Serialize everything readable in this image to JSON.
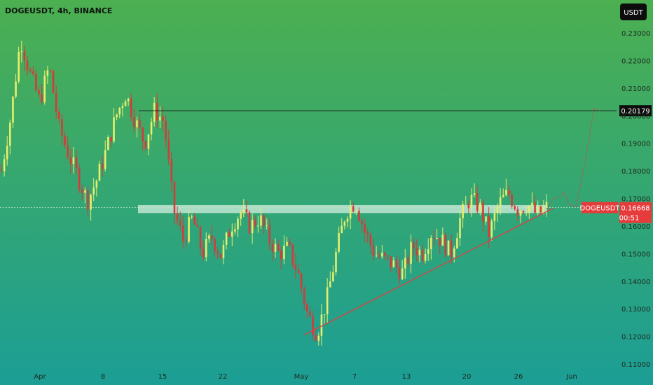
{
  "header": {
    "symbol_title": "DOGEUSDT, 4h, BINANCE",
    "currency_button": "USDT"
  },
  "colors": {
    "bg_top": "#4caf50",
    "bg_bottom": "#1b9e95",
    "up": "#e8ee6b",
    "down": "#d63a3a",
    "trendline": "#d64545",
    "resistance_line": "#1a1a1a",
    "zone": "#d4efe2",
    "price_tag": "#e53b3b"
  },
  "chart_data": {
    "type": "candlestick",
    "y_axis": {
      "ticks": [
        "0.23000",
        "0.22000",
        "0.21000",
        "0.20000",
        "0.19000",
        "0.18000",
        "0.17000",
        "0.16000",
        "0.15000",
        "0.14000",
        "0.13000",
        "0.12000",
        "0.11000"
      ],
      "range": [
        0.11,
        0.235
      ]
    },
    "x_axis": {
      "tick_labels": [
        "Apr",
        "8",
        "15",
        "22",
        "May",
        "7",
        "13",
        "20",
        "26",
        "Jun"
      ]
    },
    "resistance_level": {
      "value": 0.20179,
      "label": "0.20179"
    },
    "current_price": {
      "symbol": "DOGEUSDT",
      "value": "0.16668",
      "countdown": "00:51"
    },
    "support_zone": [
      0.1647,
      0.1676
    ],
    "trendline": {
      "from_value": 0.1205,
      "to_value": 0.1665
    },
    "projection_target": 0.2018,
    "price_path": [
      0.18,
      0.2,
      0.228,
      0.215,
      0.205,
      0.218,
      0.196,
      0.186,
      0.178,
      0.169,
      0.177,
      0.188,
      0.2,
      0.208,
      0.198,
      0.19,
      0.202,
      0.198,
      0.166,
      0.155,
      0.163,
      0.15,
      0.156,
      0.149,
      0.16,
      0.165,
      0.16,
      0.163,
      0.155,
      0.15,
      0.152,
      0.143,
      0.128,
      0.121,
      0.133,
      0.15,
      0.165,
      0.169,
      0.158,
      0.15,
      0.148,
      0.146,
      0.143,
      0.153,
      0.15,
      0.158,
      0.155,
      0.15,
      0.163,
      0.17,
      0.167,
      0.157,
      0.168,
      0.172,
      0.166,
      0.168,
      0.164,
      0.1667
    ]
  }
}
